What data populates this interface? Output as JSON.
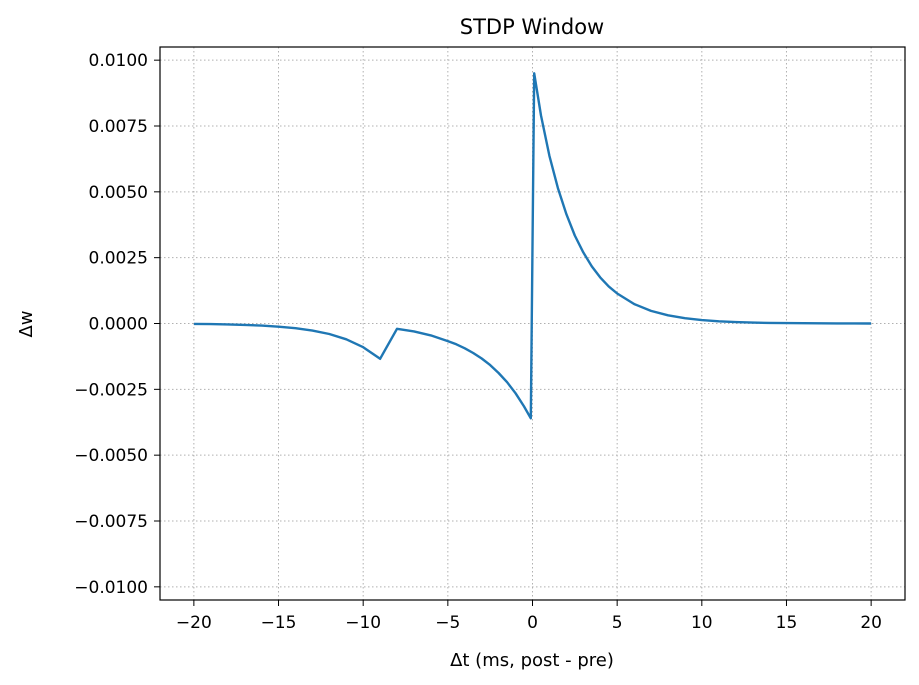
{
  "chart_data": {
    "type": "line",
    "title": "STDP Window",
    "xlabel": "Δt (ms, post - pre)",
    "ylabel": "Δw",
    "xlim": [
      -22,
      22
    ],
    "ylim": [
      -0.0105,
      0.0105
    ],
    "xticks": [
      -20,
      -15,
      -10,
      -5,
      0,
      5,
      10,
      15,
      20
    ],
    "xtick_labels": [
      "−20",
      "−15",
      "−10",
      "−5",
      "0",
      "5",
      "10",
      "15",
      "20"
    ],
    "yticks": [
      0.01,
      0.0075,
      0.005,
      0.0025,
      0.0,
      -0.0025,
      -0.005,
      -0.0075,
      -0.01
    ],
    "ytick_labels": [
      "0.0100",
      "0.0075",
      "0.0050",
      "0.0025",
      "0.0000",
      "−0.0025",
      "−0.0050",
      "−0.0075",
      "−0.0100"
    ],
    "grid": true,
    "series": [
      {
        "color": "#1f77b4",
        "x": [
          -20,
          -19,
          -18,
          -17,
          -16,
          -15,
          -14,
          -13,
          -12,
          -11,
          -10,
          -9,
          -8,
          -7,
          -6,
          -5,
          -4.5,
          -4,
          -3.5,
          -3,
          -2.5,
          -2,
          -1.5,
          -1,
          -0.5,
          -0.1,
          0.1,
          0.5,
          1,
          1.5,
          2,
          2.5,
          3,
          3.5,
          4,
          4.5,
          5,
          6,
          7,
          8,
          9,
          10,
          11,
          12,
          13,
          14,
          15,
          16,
          17,
          18,
          19,
          20
        ],
        "y": [
          -1.6e-05,
          -2.4e-05,
          -3.6e-05,
          -5.4e-05,
          -8e-05,
          -0.00012,
          -0.00018,
          -0.00027,
          -0.0004,
          -0.0006,
          -0.0009,
          -0.00134,
          -0.0002,
          -0.0003,
          -0.00045,
          -0.00067,
          -0.00079,
          -0.00094,
          -0.00112,
          -0.00133,
          -0.00158,
          -0.00188,
          -0.00223,
          -0.00265,
          -0.00315,
          -0.0036,
          0.0095,
          0.0079,
          0.00637,
          0.00514,
          0.00415,
          0.00334,
          0.0027,
          0.00217,
          0.00175,
          0.00141,
          0.00114,
          0.00074,
          0.00048,
          0.00031,
          0.0002,
          0.00013,
          8.4e-05,
          5.4e-05,
          3.5e-05,
          2.3e-05,
          1.5e-05,
          1e-05,
          6.4e-06,
          4.1e-06,
          2.7e-06,
          1.7e-06
        ]
      }
    ]
  }
}
